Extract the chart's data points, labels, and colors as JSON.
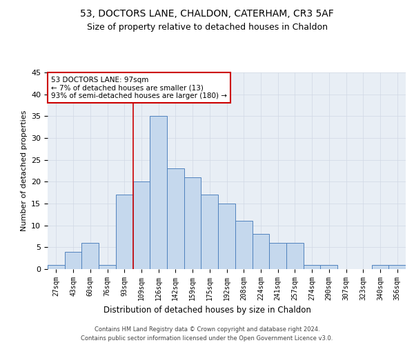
{
  "title1": "53, DOCTORS LANE, CHALDON, CATERHAM, CR3 5AF",
  "title2": "Size of property relative to detached houses in Chaldon",
  "xlabel": "Distribution of detached houses by size in Chaldon",
  "ylabel": "Number of detached properties",
  "categories": [
    "27sqm",
    "43sqm",
    "60sqm",
    "76sqm",
    "93sqm",
    "109sqm",
    "126sqm",
    "142sqm",
    "159sqm",
    "175sqm",
    "192sqm",
    "208sqm",
    "224sqm",
    "241sqm",
    "257sqm",
    "274sqm",
    "290sqm",
    "307sqm",
    "323sqm",
    "340sqm",
    "356sqm"
  ],
  "values": [
    1,
    4,
    6,
    1,
    17,
    20,
    35,
    23,
    21,
    17,
    15,
    11,
    8,
    6,
    6,
    1,
    1,
    0,
    0,
    1,
    1
  ],
  "bar_color": "#c5d8ed",
  "bar_edge_color": "#4f81bd",
  "annotation_text": "53 DOCTORS LANE: 97sqm\n← 7% of detached houses are smaller (13)\n93% of semi-detached houses are larger (180) →",
  "annotation_box_color": "#ffffff",
  "annotation_box_edge": "#cc0000",
  "vline_color": "#cc0000",
  "vline_x": 4.5,
  "ylim": [
    0,
    45
  ],
  "yticks": [
    0,
    5,
    10,
    15,
    20,
    25,
    30,
    35,
    40,
    45
  ],
  "footnote1": "Contains HM Land Registry data © Crown copyright and database right 2024.",
  "footnote2": "Contains public sector information licensed under the Open Government Licence v3.0.",
  "grid_color": "#d0d8e4",
  "bg_color": "#e8eef5",
  "fig_bg": "#ffffff",
  "title1_fontsize": 10,
  "title2_fontsize": 9,
  "ylabel_fontsize": 8,
  "xlabel_fontsize": 8.5,
  "tick_fontsize": 7,
  "annot_fontsize": 7.5,
  "footnote_fontsize": 6
}
